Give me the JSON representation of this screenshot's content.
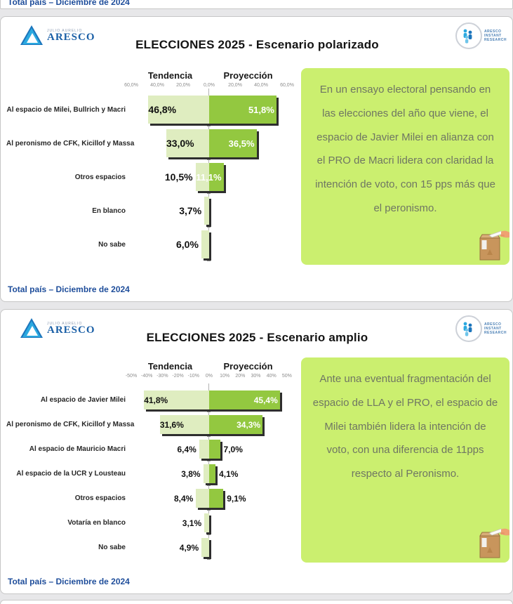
{
  "page": {
    "top_strip_label": "Total país – Diciembre de 2024"
  },
  "branding": {
    "logo_sub": "JULIO AURELIO",
    "logo_main": "ARESCO",
    "badge_line1": "ARESCO",
    "badge_line2": "INSTANT",
    "badge_line3": "RESEARCH"
  },
  "colors": {
    "proyeccion_green": "#93c840",
    "tendencia_pale_green": "#dfedc0",
    "note_background": "#cbef6f",
    "note_text": "#6f7663",
    "footer_blue": "#1f4e9b"
  },
  "panels": [
    {
      "title": "ELECCIONES 2025 - Escenario polarizado",
      "col_tendencia": "Tendencia",
      "col_proyeccion": "Proyección",
      "scale": 60,
      "ticks": [
        "60,0%",
        "40,0%",
        "20,0%",
        "0,0%",
        "20,0%",
        "40,0%",
        "60,0%"
      ],
      "rows": [
        {
          "label": "Al espacio de Milei, Bullrich y Macri",
          "t": 46.8,
          "t_label": "46,8%",
          "p": 51.8,
          "p_label": "51,8%"
        },
        {
          "label": "Al peronismo de CFK, Kicillof y Massa",
          "t": 33.0,
          "t_label": "33,0%",
          "p": 36.5,
          "p_label": "36,5%"
        },
        {
          "label": "Otros espacios",
          "t": 10.5,
          "t_label": "10,5%",
          "p": 11.1,
          "p_label": "11,1%"
        },
        {
          "label": "En blanco",
          "t": 3.7,
          "t_label": "3,7%"
        },
        {
          "label": "No sabe",
          "t": 6.0,
          "t_label": "6,0%"
        }
      ],
      "note": "En un ensayo electoral pensando en las elecciones del año que viene, el espacio de Javier Milei en alianza con el PRO de Macri lidera con claridad la intención de voto, con 15 pps más que el peronismo.",
      "footer": "Total país – Diciembre de 2024"
    },
    {
      "title": "ELECCIONES 2025 - Escenario amplio",
      "col_tendencia": "Tendencia",
      "col_proyeccion": "Proyección",
      "scale": 50,
      "ticks": [
        "-50%",
        "-40%",
        "-30%",
        "-20%",
        "-10%",
        "0%",
        "10%",
        "20%",
        "30%",
        "40%",
        "50%"
      ],
      "rows": [
        {
          "label": "Al espacio de Javier Milei",
          "t": 41.8,
          "t_label": "41,8%",
          "p": 45.4,
          "p_label": "45,4%"
        },
        {
          "label": "Al peronismo de CFK, Kicillof y Massa",
          "t": 31.6,
          "t_label": "31,6%",
          "p": 34.3,
          "p_label": "34,3%"
        },
        {
          "label": "Al espacio de Mauricio Macri",
          "t": 6.4,
          "t_label": "6,4%",
          "p": 7.0,
          "p_label": "7,0%"
        },
        {
          "label": "Al espacio de la UCR y Lousteau",
          "t": 3.8,
          "t_label": "3,8%",
          "p": 4.1,
          "p_label": "4,1%"
        },
        {
          "label": "Otros espacios",
          "t": 8.4,
          "t_label": "8,4%",
          "p": 9.1,
          "p_label": "9,1%"
        },
        {
          "label": "Votaría en blanco",
          "t": 3.1,
          "t_label": "3,1%"
        },
        {
          "label": "No sabe",
          "t": 4.9,
          "t_label": "4,9%"
        }
      ],
      "note": "Ante una eventual fragmentación del espacio de LLA y el PRO, el espacio de Milei también lidera la intención de voto, con una diferencia de 11pps respecto al Peronismo.",
      "footer": "Total país – Diciembre de 2024"
    }
  ],
  "chart_data": [
    {
      "type": "bar",
      "subtype": "horizontal-diverging",
      "title": "ELECCIONES 2025 - Escenario polarizado",
      "categories": [
        "Al espacio de Milei, Bullrich y Macri",
        "Al peronismo de CFK, Kicillof y Massa",
        "Otros espacios",
        "En blanco",
        "No sabe"
      ],
      "series": [
        {
          "name": "Tendencia",
          "side": "left",
          "values": [
            46.8,
            33.0,
            10.5,
            3.7,
            6.0
          ]
        },
        {
          "name": "Proyección",
          "side": "right",
          "values": [
            51.8,
            36.5,
            11.1,
            null,
            null
          ]
        }
      ],
      "x_ticks": [
        "60,0%",
        "40,0%",
        "20,0%",
        "0,0%",
        "20,0%",
        "40,0%",
        "60,0%"
      ],
      "xlim": [
        -60,
        60
      ],
      "grid": false,
      "legend_position": "column-headers",
      "footnote": "Total país – Diciembre de 2024"
    },
    {
      "type": "bar",
      "subtype": "horizontal-diverging",
      "title": "ELECCIONES 2025 - Escenario amplio",
      "categories": [
        "Al espacio de Javier Milei",
        "Al peronismo de CFK, Kicillof y Massa",
        "Al espacio de Mauricio Macri",
        "Al espacio de la UCR y Lousteau",
        "Otros espacios",
        "Votaría en blanco",
        "No sabe"
      ],
      "series": [
        {
          "name": "Tendencia",
          "side": "left",
          "values": [
            41.8,
            31.6,
            6.4,
            3.8,
            8.4,
            3.1,
            4.9
          ]
        },
        {
          "name": "Proyección",
          "side": "right",
          "values": [
            45.4,
            34.3,
            7.0,
            4.1,
            9.1,
            null,
            null
          ]
        }
      ],
      "x_ticks": [
        "-50%",
        "-40%",
        "-30%",
        "-20%",
        "-10%",
        "0%",
        "10%",
        "20%",
        "30%",
        "40%",
        "50%"
      ],
      "xlim": [
        -50,
        50
      ],
      "grid": false,
      "legend_position": "column-headers",
      "footnote": "Total país – Diciembre de 2024"
    }
  ]
}
